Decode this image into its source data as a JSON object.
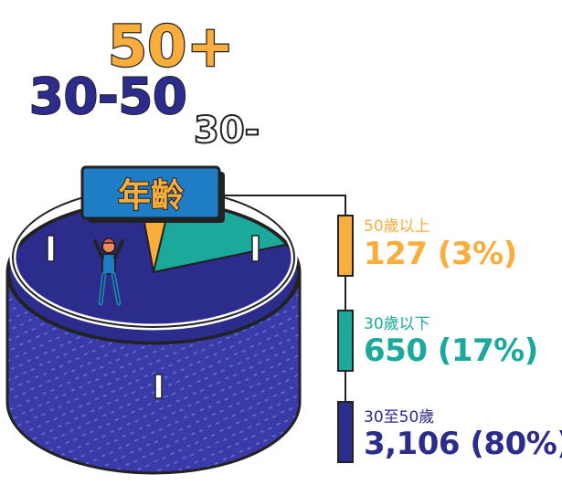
{
  "decor_labels": {
    "top": "50+",
    "middle": "30-50",
    "small": "30-"
  },
  "title_badge": "年齡",
  "colors": {
    "orange": "#f9ad3c",
    "teal": "#1aa99a",
    "navy": "#2c2c8c",
    "badge_blue": "#1e7dc4",
    "outline": "#222222"
  },
  "chart_data": {
    "type": "pie",
    "title": "年齡",
    "categories": [
      "50歲以上",
      "30歲以下",
      "30至50歲"
    ],
    "values": [
      127,
      650,
      3106
    ],
    "percent_labels": [
      "127 (3%)",
      "650 (17%)",
      "3,106 (80%)"
    ],
    "colors": [
      "#f9ad3c",
      "#1aa99a",
      "#2c2c8c"
    ]
  }
}
